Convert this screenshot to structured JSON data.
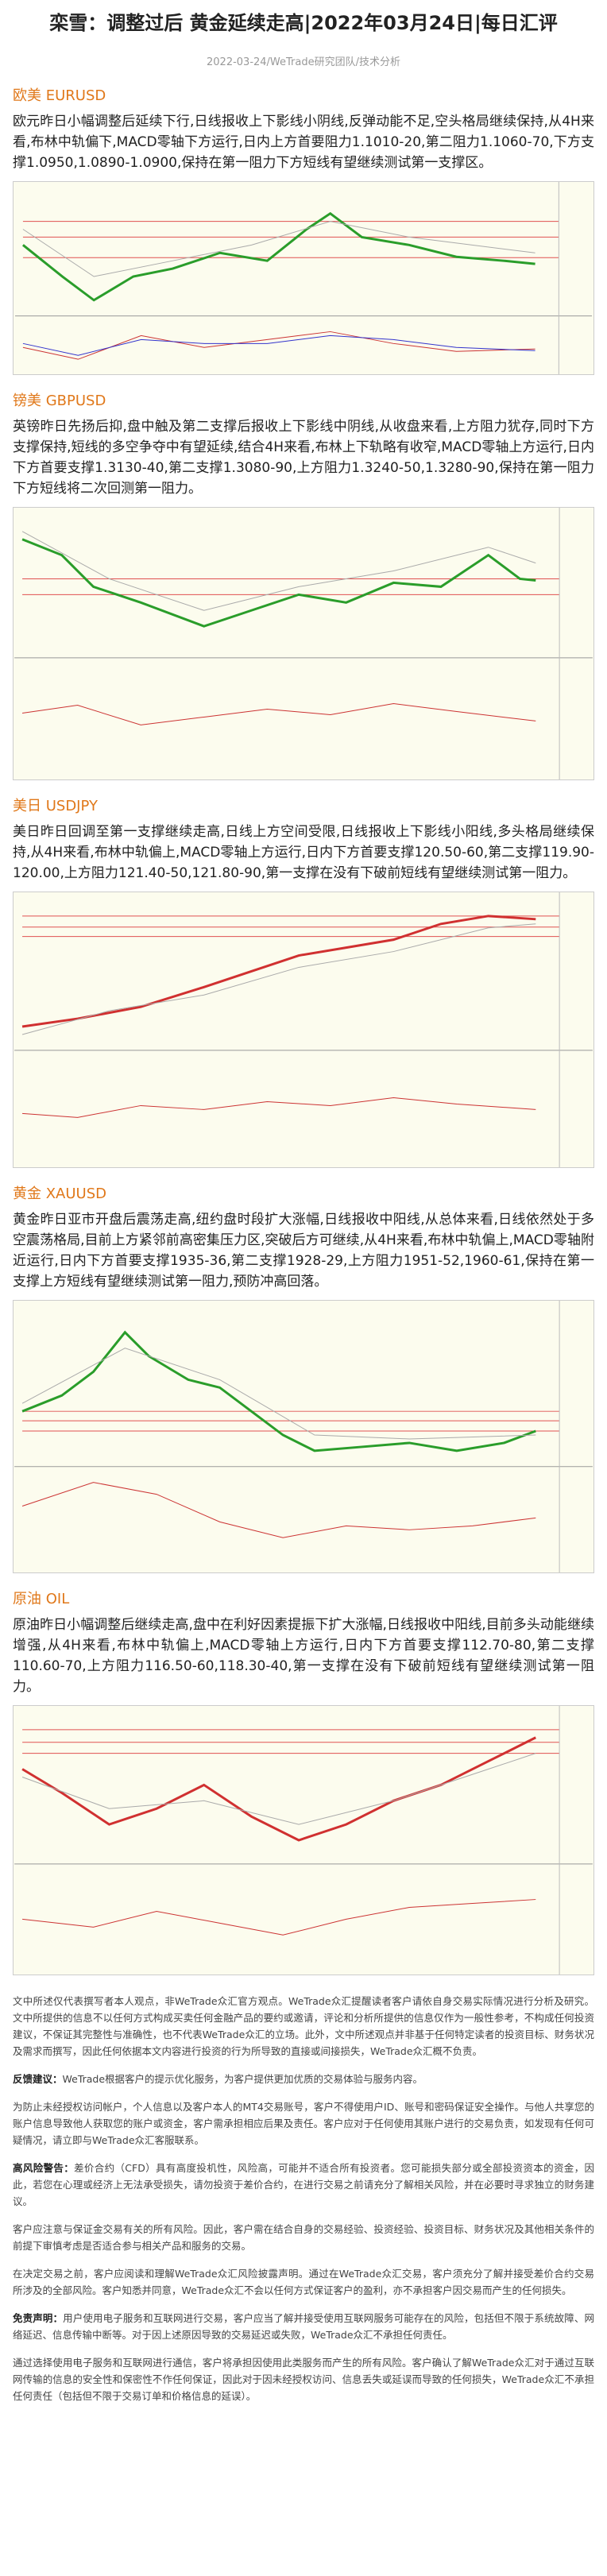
{
  "header": {
    "title": "栾雪：调整过后 黄金延续走高|2022年03月24日|每日汇评",
    "meta": "2022-03-24/WeTrade研究团队/技术分析"
  },
  "sections": [
    {
      "heading": "欧美 EURUSD",
      "body": "欧元昨日小幅调整后延续下行,日线报收上下影线小阴线,反弹动能不足,空头格局继续保持,从4H来看,布林中轨偏下,MACD零轴下方运行,日内上方首要阻力1.1010-20,第二阻力1.1060-70,下方支撑1.0950,1.0890-1.0900,保持在第一阻力下方短线有望继续测试第一支撑区。"
    },
    {
      "heading": "镑美 GBPUSD",
      "body": "英镑昨日先扬后抑,盘中触及第二支撑后报收上下影线中阴线,从收盘来看,上方阻力犹存,同时下方支撑保持,短线的多空争夺中有望延续,结合4H来看,布林上下轨略有收窄,MACD零轴上方运行,日内下方首要支撑1.3130-40,第二支撑1.3080-90,上方阻力1.3240-50,1.3280-90,保持在第一阻力下方短线将二次回测第一阻力。"
    },
    {
      "heading": "美日 USDJPY",
      "body": "美日昨日回调至第一支撑继续走高,日线上方空间受限,日线报收上下影线小阳线,多头格局继续保持,从4H来看,布林中轨偏上,MACD零轴上方运行,日内下方首要支撑120.50-60,第二支撑119.90-120.00,上方阻力121.40-50,121.80-90,第一支撑在没有下破前短线有望继续测试第一阻力。"
    },
    {
      "heading": "黄金 XAUUSD",
      "body": "黄金昨日亚市开盘后震荡走高,纽约盘时段扩大涨幅,日线报收中阳线,从总体来看,日线依然处于多空震荡格局,目前上方紧邻前高密集压力区,突破后方可继续,从4H来看,布林中轨偏上,MACD零轴附近运行,日内下方首要支撑1935-36,第二支撑1928-29,上方阻力1951-52,1960-61,保持在第一支撑上方短线有望继续测试第一阻力,预防冲高回落。"
    },
    {
      "heading": "原油 OIL",
      "body": "原油昨日小幅调整后继续走高,盘中在利好因素提振下扩大涨幅,日线报收中阳线,目前多头动能继续增强,从4H来看,布林中轨偏上,MACD零轴上方运行,日内下方首要支撑112.70-80,第二支撑110.60-70,上方阻力116.50-60,118.30-40,第一支撑在没有下破前短线有望继续测试第一阻力。"
    }
  ],
  "disclaimer": [
    {
      "text": "文中所述仅代表撰写者本人观点，非WeTrade众汇官方观点。WeTrade众汇提醒读者客户请依自身交易实际情况进行分析及研究。文中所提供的信息不以任何方式构成买卖任何金融产品的要约或邀请，评论和分析所提供的信息仅作为一般性参考，不构成任何投资建议，不保证其完整性与准确性，也不代表WeTrade众汇的立场。此外，文中所述观点并非基于任何特定读者的投资目标、财务状况及需求而撰写，因此任何依据本文内容进行投资的行为所导致的直接或间接损失，WeTrade众汇概不负责。"
    },
    {
      "lead": "反馈建议：",
      "text": "WeTrade根据客户的提示优化服务，为客户提供更加优质的交易体验与服务内容。"
    },
    {
      "text": "为防止未经授权访问帐户，个人信息以及客户本人的MT4交易账号，客户不得使用户ID、账号和密码保证安全操作。与他人共享您的账户信息导致他人获取您的账户或资金，客户需承担相应后果及责任。客户应对于任何使用其账户进行的交易负责，如发现有任何可疑情况，请立即与WeTrade众汇客服联系。"
    },
    {
      "lead": "高风险警告：",
      "text": "差价合约（CFD）具有高度投机性，风险高，可能并不适合所有投资者。您可能损失部分或全部投资资本的资金，因此，若您在心理或经济上无法承受损失，请勿投资于差价合约，在进行交易之前请充分了解相关风险，并在必要时寻求独立的财务建议。"
    },
    {
      "text": "客户应注意与保证金交易有关的所有风险。因此，客户需在结合自身的交易经验、投资经验、投资目标、财务状况及其他相关条件的前提下审慎考虑是否适合参与相关产品和服务的交易。"
    },
    {
      "text": "在决定交易之前，客户应阅读和理解WeTrade众汇风险披露声明。通过在WeTrade众汇交易，客户须充分了解并接受差价合约交易所涉及的全部风险。客户知悉并同意，WeTrade众汇不会以任何方式保证客户的盈利，亦不承担客户因交易而产生的任何损失。"
    },
    {
      "lead": "免责声明：",
      "text": "用户使用电子服务和互联网进行交易，客户应当了解并接受使用互联网服务可能存在的风险，包括但不限于系统故障、网络延迟、信息传输中断等。对于因上述原因导致的交易延迟或失败，WeTrade众汇不承担任何责任。"
    },
    {
      "text": "通过选择使用电子服务和互联网进行通信，客户将承担因使用此类服务而产生的所有风险。客户确认了解WeTrade众汇对于通过互联网传输的信息的安全性和保密性不作任何保证，因此对于因未经授权访问、信息丢失或延误而导致的任何损失，WeTrade众汇不承担任何责任（包括但不限于交易订单和价格信息的延误）。"
    }
  ]
}
